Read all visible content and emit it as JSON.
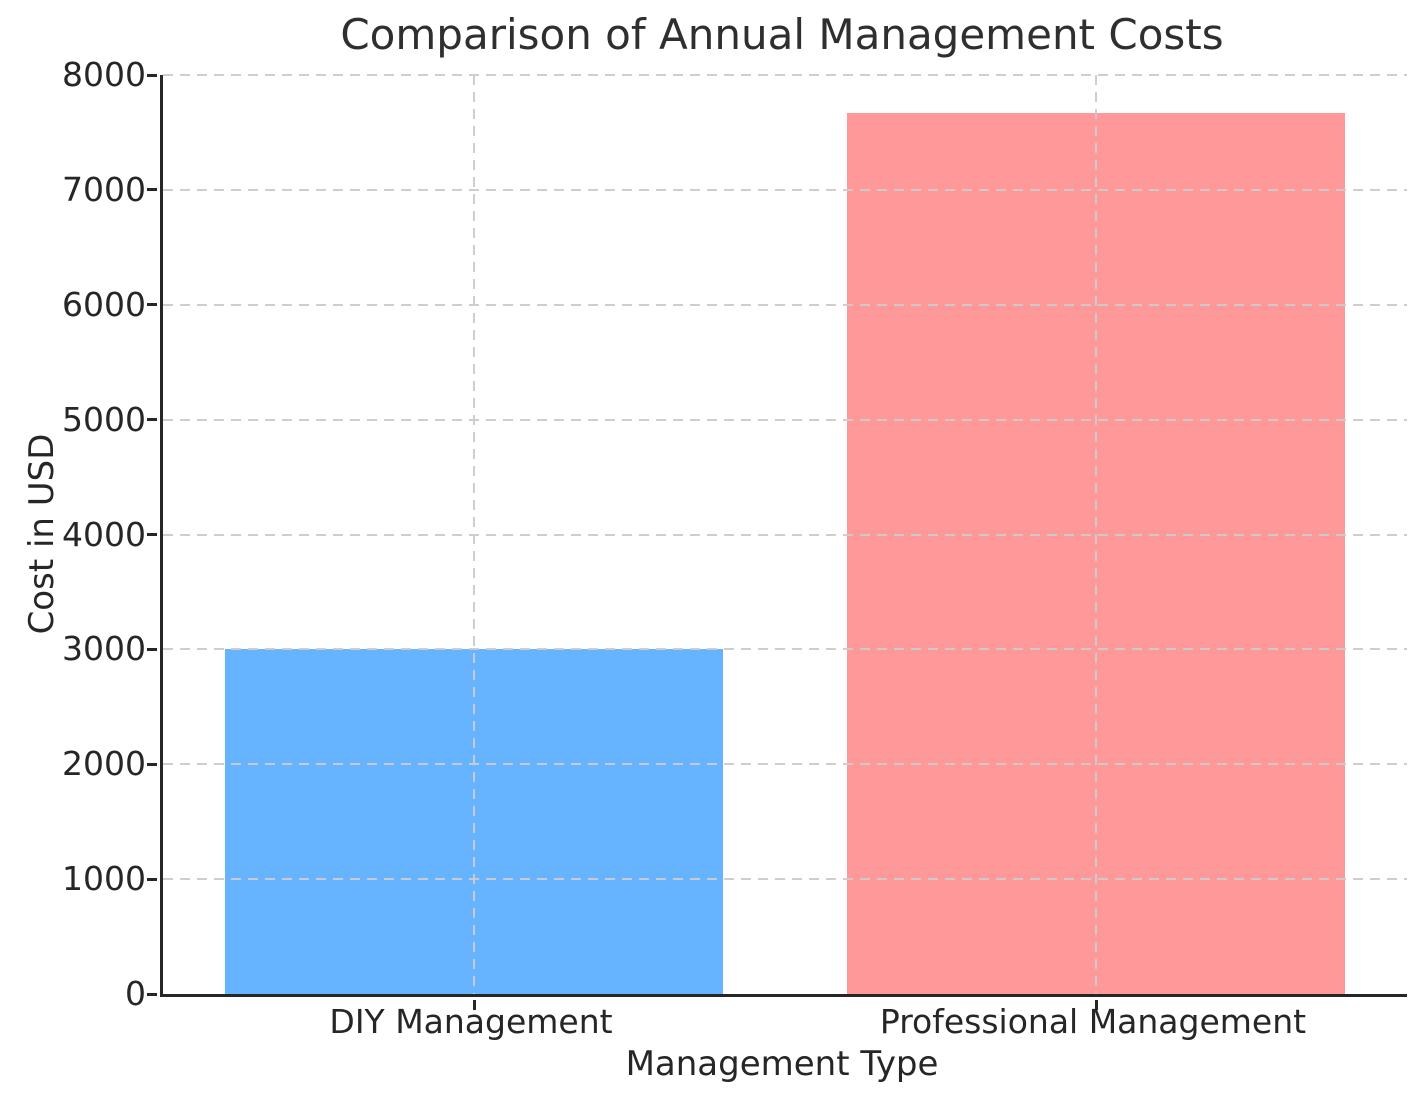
{
  "chart_data": {
    "type": "bar",
    "title": "Comparison of Annual Management Costs",
    "xlabel": "Management Type",
    "ylabel": "Cost in USD",
    "categories": [
      "DIY Management",
      "Professional Management"
    ],
    "values": [
      3000,
      7670
    ],
    "bar_colors": [
      "#66b3ff",
      "#ff9999"
    ],
    "ylim": [
      0,
      8000
    ],
    "yticks": [
      0,
      1000,
      2000,
      3000,
      4000,
      5000,
      6000,
      7000,
      8000
    ],
    "bar_width_fraction": 0.4,
    "grid": "dashed light-gray gridlines, horizontal at every ytick and vertical at each category center, drawn over bars",
    "legend_position": "none",
    "grid_color": "#cccccc",
    "axis_color": "#262626",
    "text_color": "#2f2f2f",
    "background_color": "#ffffff"
  }
}
